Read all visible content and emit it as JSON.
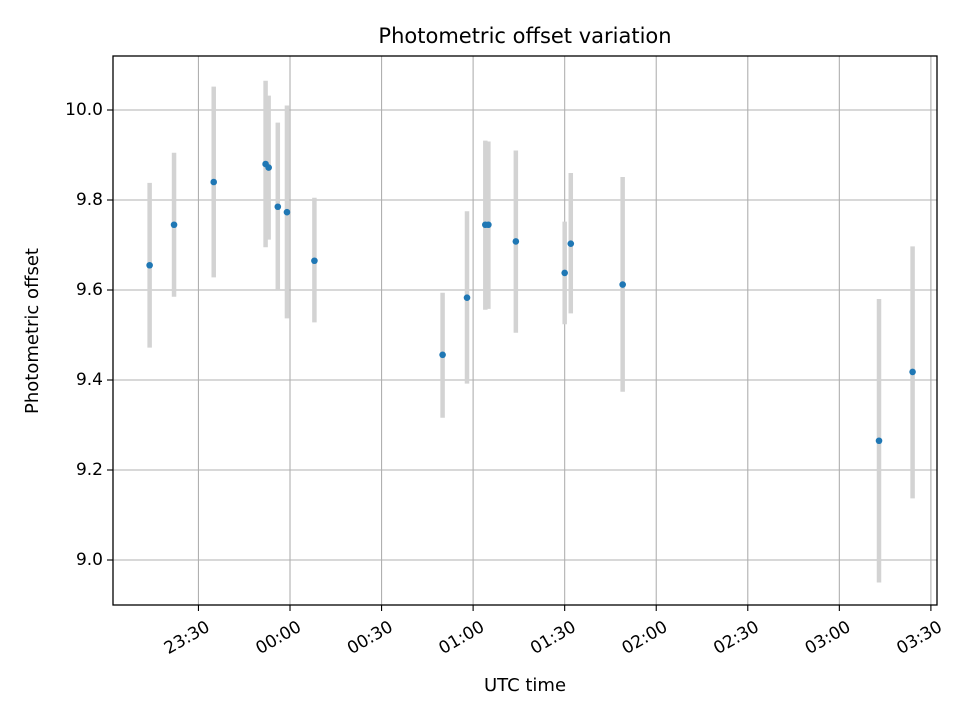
{
  "chart_data": {
    "type": "scatter",
    "title": "Photometric offset variation",
    "xlabel": "UTC time",
    "ylabel": "Photometric offset",
    "x_ticks": [
      "23:30",
      "00:00",
      "00:30",
      "01:00",
      "01:30",
      "02:00",
      "02:30",
      "03:00",
      "03:30"
    ],
    "y_ticks": [
      "9.0",
      "9.2",
      "9.4",
      "9.6",
      "9.8",
      "10.0"
    ],
    "xlim": [
      "23:02",
      "03:32"
    ],
    "ylim": [
      8.9,
      10.12
    ],
    "grid": true,
    "colors": {
      "point": "#1f77b4",
      "errorbar": "#d3d3d3",
      "grid": "#b0b0b0"
    },
    "series": [
      {
        "points": [
          {
            "x": "23:14",
            "y": 9.655,
            "low": 9.472,
            "high": 9.838
          },
          {
            "x": "23:22",
            "y": 9.745,
            "low": 9.585,
            "high": 9.905
          },
          {
            "x": "23:35",
            "y": 9.84,
            "low": 9.628,
            "high": 10.052
          },
          {
            "x": "23:52",
            "y": 9.88,
            "low": 9.695,
            "high": 10.065
          },
          {
            "x": "23:53",
            "y": 9.872,
            "low": 9.712,
            "high": 10.032
          },
          {
            "x": "23:56",
            "y": 9.785,
            "low": 9.598,
            "high": 9.972
          },
          {
            "x": "23:59",
            "y": 9.773,
            "low": 9.537,
            "high": 10.01
          },
          {
            "x": "00:08",
            "y": 9.665,
            "low": 9.528,
            "high": 9.805
          },
          {
            "x": "00:50",
            "y": 9.456,
            "low": 9.316,
            "high": 9.594
          },
          {
            "x": "00:58",
            "y": 9.583,
            "low": 9.392,
            "high": 9.775
          },
          {
            "x": "01:04",
            "y": 9.745,
            "low": 9.556,
            "high": 9.932
          },
          {
            "x": "01:05",
            "y": 9.745,
            "low": 9.558,
            "high": 9.93
          },
          {
            "x": "01:14",
            "y": 9.708,
            "low": 9.505,
            "high": 9.91
          },
          {
            "x": "01:30",
            "y": 9.638,
            "low": 9.524,
            "high": 9.752
          },
          {
            "x": "01:32",
            "y": 9.703,
            "low": 9.548,
            "high": 9.86
          },
          {
            "x": "01:49",
            "y": 9.612,
            "low": 9.374,
            "high": 9.851
          },
          {
            "x": "03:13",
            "y": 9.265,
            "low": 8.95,
            "high": 9.58
          },
          {
            "x": "03:24",
            "y": 9.418,
            "low": 9.137,
            "high": 9.697
          }
        ]
      }
    ]
  }
}
